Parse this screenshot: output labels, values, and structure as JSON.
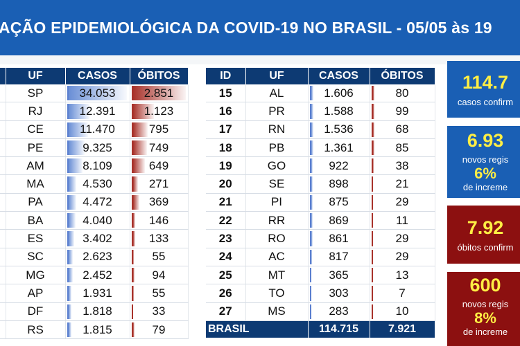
{
  "header": {
    "title": "AÇÃO EPIDEMIOLÓGICA DA COVID-19 NO BRASIL - 05/05 às 19"
  },
  "colors": {
    "header_blue": "#1a5fb4",
    "table_header_navy": "#0d3a73",
    "cases_bar_blue": "#6a8fd6",
    "deaths_bar_red": "#a8322a",
    "stat_red": "#8c1010",
    "stat_yellow": "#ffee44"
  },
  "left_table": {
    "columns": [
      "UF",
      "CASOS",
      "ÓBITOS"
    ],
    "max_cases": 34053,
    "max_deaths": 2851,
    "rows": [
      {
        "uf": "SP",
        "casos": "34.053",
        "obitos": "2.851",
        "casos_n": 34053,
        "obitos_n": 2851
      },
      {
        "uf": "RJ",
        "casos": "12.391",
        "obitos": "1.123",
        "casos_n": 12391,
        "obitos_n": 1123
      },
      {
        "uf": "CE",
        "casos": "11.470",
        "obitos": "795",
        "casos_n": 11470,
        "obitos_n": 795
      },
      {
        "uf": "PE",
        "casos": "9.325",
        "obitos": "749",
        "casos_n": 9325,
        "obitos_n": 749
      },
      {
        "uf": "AM",
        "casos": "8.109",
        "obitos": "649",
        "casos_n": 8109,
        "obitos_n": 649
      },
      {
        "uf": "MA",
        "casos": "4.530",
        "obitos": "271",
        "casos_n": 4530,
        "obitos_n": 271
      },
      {
        "uf": "PA",
        "casos": "4.472",
        "obitos": "369",
        "casos_n": 4472,
        "obitos_n": 369
      },
      {
        "uf": "BA",
        "casos": "4.040",
        "obitos": "146",
        "casos_n": 4040,
        "obitos_n": 146
      },
      {
        "uf": "ES",
        "casos": "3.402",
        "obitos": "133",
        "casos_n": 3402,
        "obitos_n": 133
      },
      {
        "uf": "SC",
        "casos": "2.623",
        "obitos": "55",
        "casos_n": 2623,
        "obitos_n": 55
      },
      {
        "uf": "MG",
        "casos": "2.452",
        "obitos": "94",
        "casos_n": 2452,
        "obitos_n": 94
      },
      {
        "uf": "AP",
        "casos": "1.931",
        "obitos": "55",
        "casos_n": 1931,
        "obitos_n": 55
      },
      {
        "uf": "DF",
        "casos": "1.818",
        "obitos": "33",
        "casos_n": 1818,
        "obitos_n": 33
      },
      {
        "uf": "RS",
        "casos": "1.815",
        "obitos": "79",
        "casos_n": 1815,
        "obitos_n": 79
      }
    ]
  },
  "right_table": {
    "columns": [
      "ID",
      "UF",
      "CASOS",
      "ÓBITOS"
    ],
    "rows": [
      {
        "id": "15",
        "uf": "AL",
        "casos": "1.606",
        "obitos": "80",
        "casos_n": 1606,
        "obitos_n": 80
      },
      {
        "id": "16",
        "uf": "PR",
        "casos": "1.588",
        "obitos": "99",
        "casos_n": 1588,
        "obitos_n": 99
      },
      {
        "id": "17",
        "uf": "RN",
        "casos": "1.536",
        "obitos": "68",
        "casos_n": 1536,
        "obitos_n": 68
      },
      {
        "id": "18",
        "uf": "PB",
        "casos": "1.361",
        "obitos": "85",
        "casos_n": 1361,
        "obitos_n": 85
      },
      {
        "id": "19",
        "uf": "GO",
        "casos": "922",
        "obitos": "38",
        "casos_n": 922,
        "obitos_n": 38
      },
      {
        "id": "20",
        "uf": "SE",
        "casos": "898",
        "obitos": "21",
        "casos_n": 898,
        "obitos_n": 21
      },
      {
        "id": "21",
        "uf": "PI",
        "casos": "875",
        "obitos": "29",
        "casos_n": 875,
        "obitos_n": 29
      },
      {
        "id": "22",
        "uf": "RR",
        "casos": "869",
        "obitos": "11",
        "casos_n": 869,
        "obitos_n": 11
      },
      {
        "id": "23",
        "uf": "RO",
        "casos": "861",
        "obitos": "29",
        "casos_n": 861,
        "obitos_n": 29
      },
      {
        "id": "24",
        "uf": "AC",
        "casos": "817",
        "obitos": "29",
        "casos_n": 817,
        "obitos_n": 29
      },
      {
        "id": "25",
        "uf": "MT",
        "casos": "365",
        "obitos": "13",
        "casos_n": 365,
        "obitos_n": 13
      },
      {
        "id": "26",
        "uf": "TO",
        "casos": "303",
        "obitos": "7",
        "casos_n": 303,
        "obitos_n": 7
      },
      {
        "id": "27",
        "uf": "MS",
        "casos": "283",
        "obitos": "10",
        "casos_n": 283,
        "obitos_n": 10
      }
    ],
    "total": {
      "label": "BRASIL",
      "casos": "114.715",
      "obitos": "7.921"
    }
  },
  "stats": {
    "cases_confirmed": {
      "value": "114.7",
      "label": "casos confirm"
    },
    "new_cases": {
      "value": "6.93",
      "label": "novos regis",
      "pct": "6%",
      "pct_label": "de increme"
    },
    "deaths_confirmed": {
      "value": "7.92",
      "label": "óbitos confirm"
    },
    "new_deaths": {
      "value": "600",
      "label": "novos regis",
      "pct": "8%",
      "pct_label": "de increme"
    }
  }
}
